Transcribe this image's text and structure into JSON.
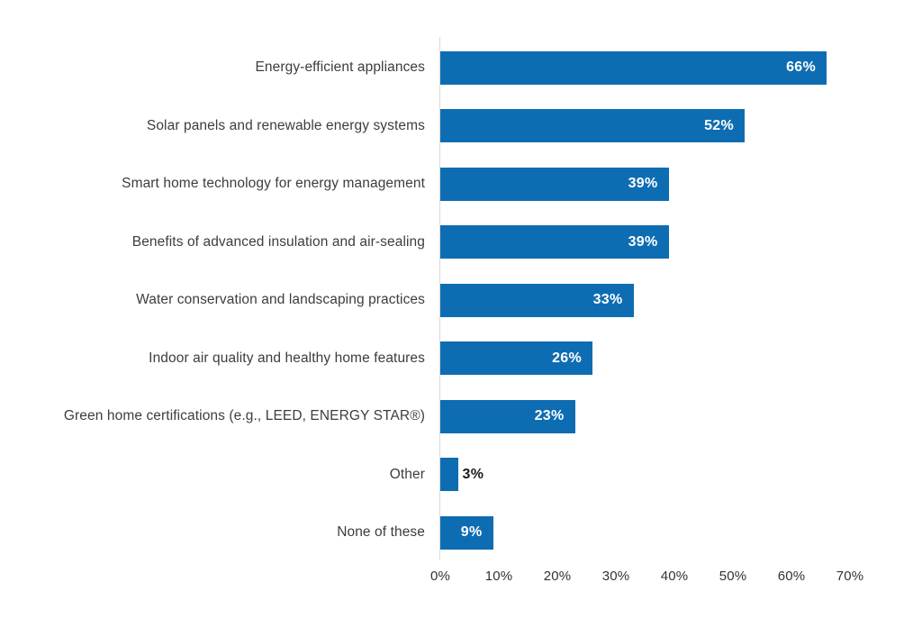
{
  "chart_data": {
    "type": "bar",
    "orientation": "horizontal",
    "title": "",
    "xlabel": "",
    "ylabel": "",
    "categories": [
      "Energy-efficient appliances",
      "Solar panels and renewable energy systems",
      "Smart home technology for energy management",
      "Benefits of advanced insulation and air-sealing",
      "Water conservation and landscaping practices",
      "Indoor air quality and healthy home features",
      "Green home certifications (e.g., LEED, ENERGY STAR®)",
      "Other",
      "None of these"
    ],
    "values": [
      66,
      52,
      39,
      39,
      33,
      26,
      23,
      3,
      9
    ],
    "value_labels": [
      "66%",
      "52%",
      "39%",
      "39%",
      "33%",
      "26%",
      "23%",
      "3%",
      "9%"
    ],
    "xlim": [
      0,
      70
    ],
    "x_ticks": [
      "0%",
      "10%",
      "20%",
      "30%",
      "40%",
      "50%",
      "60%",
      "70%"
    ],
    "grid": false,
    "legend": null,
    "colors": {
      "bar": "#0E6DB2",
      "value_label_inside": "#ffffff",
      "value_label_outside": "#1a1a1a",
      "category_label": "#3d3d3d",
      "tick_label": "#333333",
      "axis_line": "#d9d9d9",
      "background": "#ffffff"
    }
  }
}
